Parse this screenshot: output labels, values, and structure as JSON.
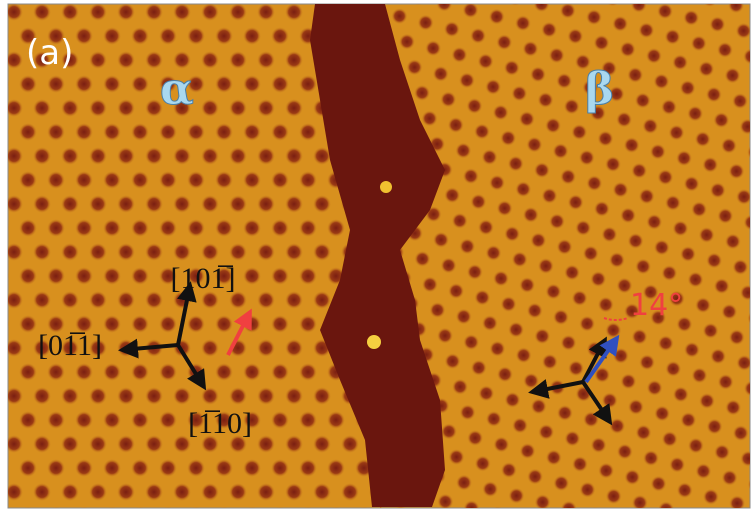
{
  "panel_label": "(a)",
  "domains": {
    "left": "α",
    "right": "β"
  },
  "directions": [
    "[101̅]",
    "[01̅1]",
    "[1̅10]"
  ],
  "angle": "14°"
}
